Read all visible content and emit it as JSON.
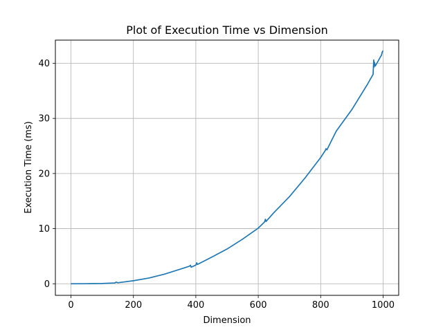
{
  "chart_data": {
    "type": "line",
    "title": "Plot of Execution Time vs Dimension",
    "xlabel": "Dimension",
    "ylabel": "Execution Time (ms)",
    "xlim": [
      -50,
      1050
    ],
    "ylim": [
      -2.1,
      44.2
    ],
    "xticks": [
      0,
      200,
      400,
      600,
      800,
      1000
    ],
    "yticks": [
      0,
      10,
      20,
      30,
      40
    ],
    "grid": true,
    "series": [
      {
        "color": "#1f77b4",
        "x": [
          1,
          50,
          100,
          140,
          145,
          150,
          200,
          250,
          300,
          350,
          380,
          383,
          385,
          400,
          403,
          405,
          450,
          500,
          550,
          600,
          620,
          623,
          625,
          650,
          700,
          750,
          800,
          815,
          817,
          820,
          850,
          900,
          950,
          968,
          970,
          971,
          972,
          975,
          990,
          995,
          997,
          999
        ],
        "y": [
          0.0,
          0.01,
          0.05,
          0.15,
          0.3,
          0.18,
          0.55,
          1.05,
          1.75,
          2.65,
          3.2,
          3.35,
          3.0,
          3.4,
          3.8,
          3.5,
          4.8,
          6.3,
          8.1,
          10.1,
          11.2,
          11.7,
          11.3,
          12.9,
          15.8,
          19.2,
          22.9,
          24.2,
          24.5,
          24.3,
          27.7,
          31.6,
          36.2,
          38.0,
          40.6,
          39.3,
          40.2,
          39.5,
          41.0,
          41.5,
          42.0,
          42.2
        ]
      }
    ]
  }
}
